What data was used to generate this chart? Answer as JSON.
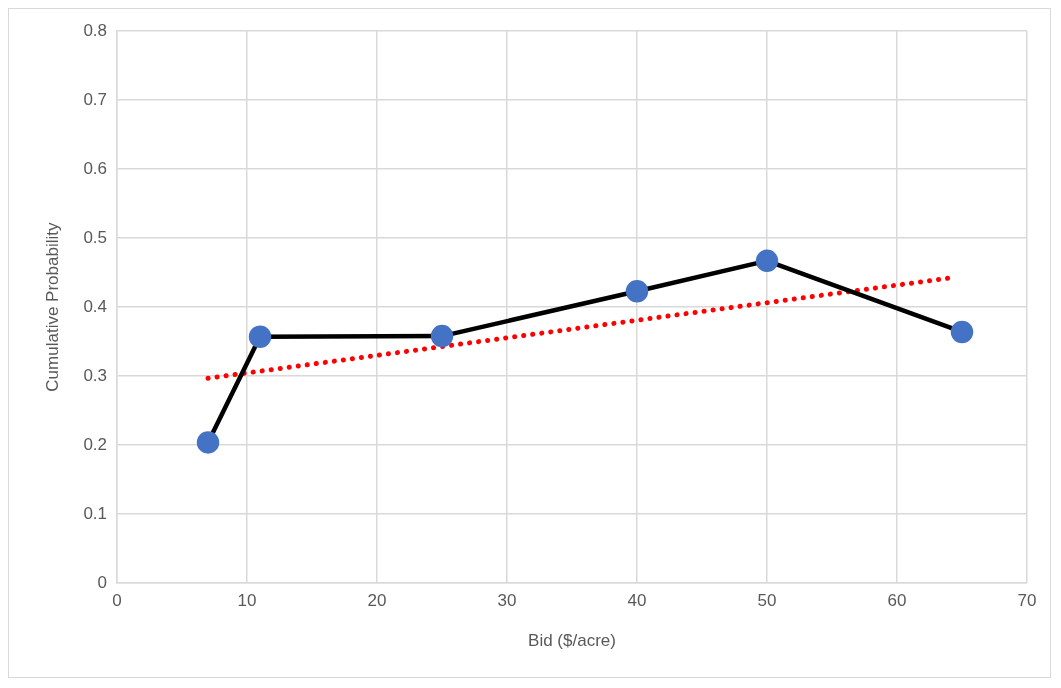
{
  "chart_data": {
    "type": "line",
    "xlabel": "Bid ($/acre)",
    "ylabel": "Cumulative Probability",
    "xlim": [
      0,
      70
    ],
    "xticks": [
      0,
      10,
      20,
      30,
      40,
      50,
      60,
      70
    ],
    "ylim": [
      0,
      0.8
    ],
    "yticks": [
      0,
      0.1,
      0.2,
      0.3,
      0.4,
      0.5,
      0.6,
      0.7,
      0.8
    ],
    "grid": true,
    "legend": false,
    "series": [
      {
        "x": [
          7,
          11,
          25,
          40,
          50,
          65
        ],
        "values": [
          0.204,
          0.357,
          0.358,
          0.423,
          0.467,
          0.364
        ],
        "color": "#000000",
        "colors": [
          "#4472c4",
          "#4472c4",
          "#4472c4",
          "#4472c4",
          "#4472c4",
          "#4472c4"
        ],
        "marker": "circle",
        "line_style": "solid"
      },
      {
        "type": "line",
        "x": [
          7,
          64
        ],
        "values": [
          0.297,
          0.442
        ],
        "color": "#ff0000",
        "marker": "none",
        "line_style": "dotted"
      }
    ]
  }
}
